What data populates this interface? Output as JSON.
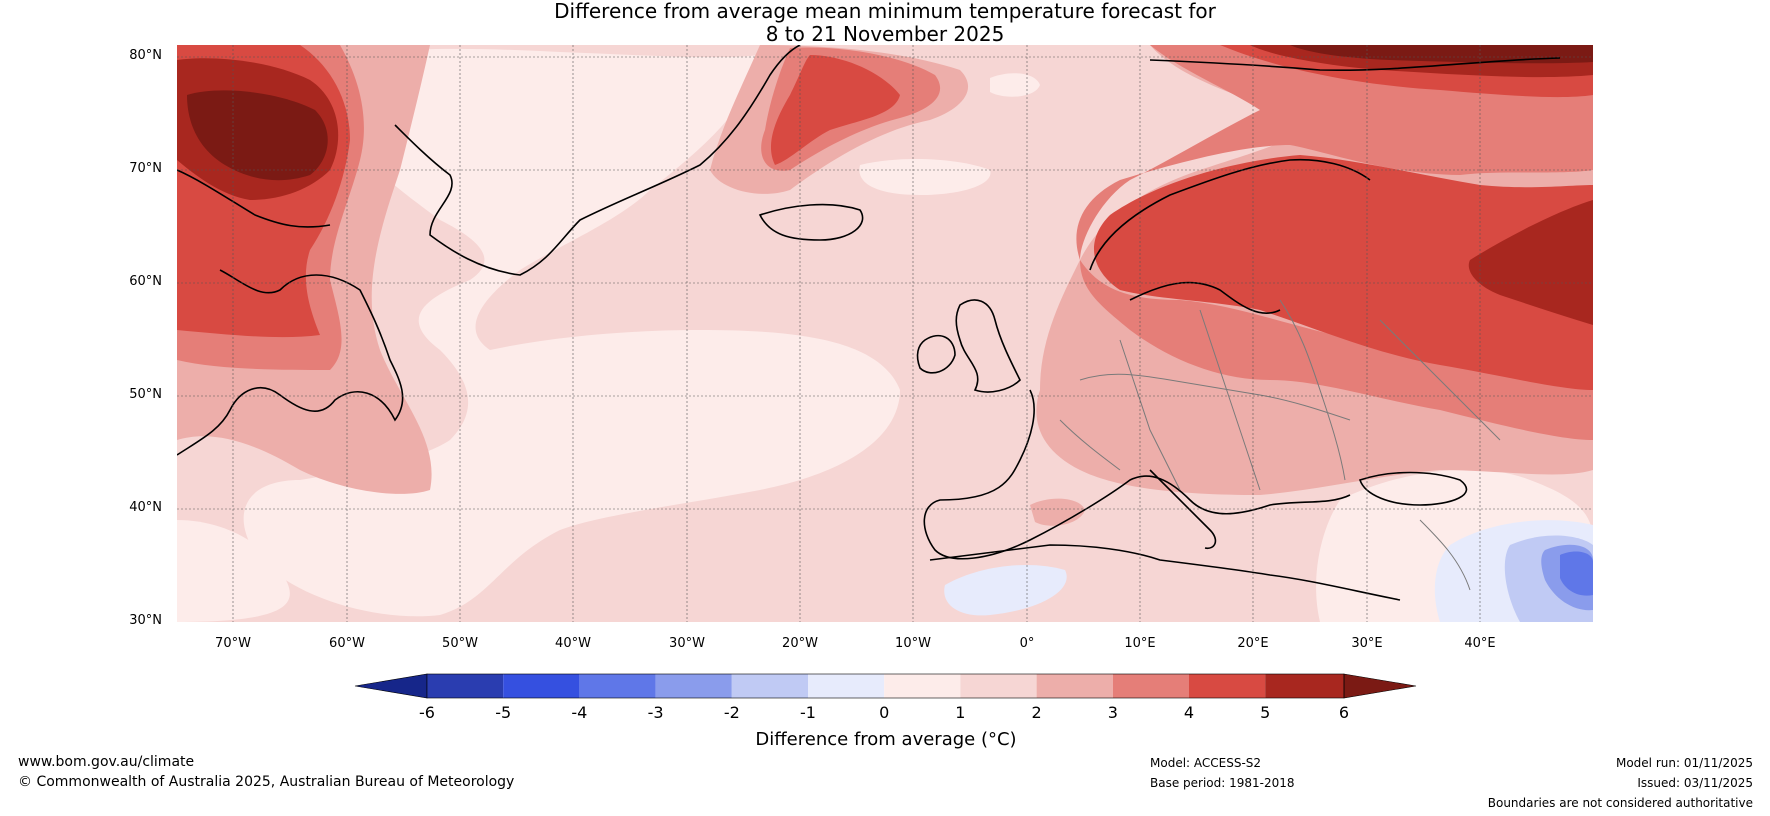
{
  "title": {
    "line1": "Difference from average mean minimum temperature forecast for",
    "line2": "8 to 21 November 2025"
  },
  "map": {
    "lat_labels": [
      "80°N",
      "70°N",
      "60°N",
      "50°N",
      "40°N",
      "30°N"
    ],
    "lon_labels": [
      "70°W",
      "60°W",
      "50°W",
      "40°W",
      "30°W",
      "20°W",
      "10°W",
      "0°",
      "10°E",
      "20°E",
      "30°E",
      "40°E"
    ],
    "extent": {
      "lon": [
        -75,
        50
      ],
      "lat": [
        30,
        81
      ]
    }
  },
  "colorbar": {
    "ticks": [
      "-6",
      "-5",
      "-4",
      "-3",
      "-2",
      "-1",
      "0",
      "1",
      "2",
      "3",
      "4",
      "5",
      "6"
    ],
    "colors": [
      "#16268a",
      "#2a3db0",
      "#3550e0",
      "#5f77e8",
      "#8a9cec",
      "#c0caf4",
      "#e7ebfc",
      "#fdecea",
      "#f6d6d4",
      "#edaeaa",
      "#e57e78",
      "#d84a42",
      "#a8271f",
      "#7b1a14"
    ],
    "label": "Difference from average (°C)"
  },
  "footer": {
    "website": "www.bom.gov.au/climate",
    "copyright": "© Commonwealth of Australia 2025, Australian Bureau of Meteorology",
    "model": "Model: ACCESS-S2",
    "base_period": "Base period: 1981-2018",
    "model_run": "Model run: 01/11/2025",
    "issued": "Issued: 03/11/2025",
    "disclaimer": "Boundaries are not considered authoritative"
  }
}
